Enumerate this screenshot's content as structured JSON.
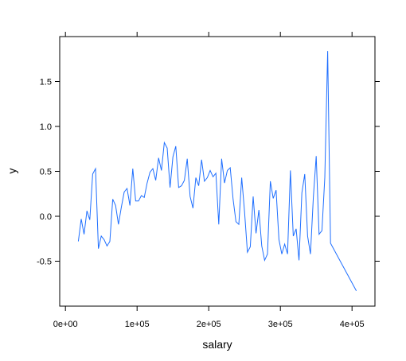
{
  "chart_data": {
    "type": "line",
    "xlabel": "salary",
    "ylabel": "y",
    "xlim": [
      -8000,
      432000
    ],
    "ylim": [
      -1.0,
      2.0
    ],
    "grid": false,
    "x_ticks": [
      {
        "value": 0,
        "label": "0e+00"
      },
      {
        "value": 100000,
        "label": "1e+05"
      },
      {
        "value": 200000,
        "label": "2e+05"
      },
      {
        "value": 300000,
        "label": "3e+05"
      },
      {
        "value": 400000,
        "label": "4e+05"
      }
    ],
    "y_ticks": [
      {
        "value": -0.5,
        "label": "-0.5"
      },
      {
        "value": 0.0,
        "label": "0.0"
      },
      {
        "value": 0.5,
        "label": "0.5"
      },
      {
        "value": 1.0,
        "label": "1.0"
      },
      {
        "value": 1.5,
        "label": "1.5"
      }
    ],
    "series": [
      {
        "color": "#1f6fff",
        "x": [
          18000,
          22000,
          26000,
          30000,
          34000,
          38000,
          42000,
          46000,
          50000,
          54000,
          58000,
          62000,
          66000,
          70000,
          74000,
          78000,
          82000,
          86000,
          90000,
          94000,
          98000,
          102000,
          106000,
          110000,
          114000,
          118000,
          122000,
          126000,
          130000,
          134000,
          138000,
          142000,
          146000,
          150000,
          154000,
          158000,
          162000,
          166000,
          170000,
          174000,
          178000,
          182000,
          186000,
          190000,
          194000,
          198000,
          202000,
          206000,
          210000,
          214000,
          218000,
          222000,
          226000,
          230000,
          234000,
          238000,
          242000,
          246000,
          250000,
          254000,
          258000,
          262000,
          266000,
          270000,
          274000,
          278000,
          282000,
          286000,
          290000,
          294000,
          298000,
          302000,
          306000,
          310000,
          314000,
          318000,
          322000,
          326000,
          330000,
          334000,
          338000,
          342000,
          346000,
          350000,
          354000,
          358000,
          362000,
          366000,
          370000,
          406000
        ],
        "y": [
          -0.28,
          -0.03,
          -0.2,
          0.06,
          -0.04,
          0.47,
          0.53,
          -0.36,
          -0.22,
          -0.26,
          -0.33,
          -0.28,
          0.19,
          0.12,
          -0.09,
          0.1,
          0.27,
          0.31,
          0.12,
          0.53,
          0.17,
          0.17,
          0.23,
          0.21,
          0.37,
          0.49,
          0.53,
          0.4,
          0.65,
          0.51,
          0.82,
          0.76,
          0.32,
          0.66,
          0.78,
          0.32,
          0.34,
          0.4,
          0.64,
          0.22,
          0.09,
          0.43,
          0.34,
          0.63,
          0.39,
          0.43,
          0.51,
          0.44,
          0.48,
          -0.09,
          0.64,
          0.37,
          0.51,
          0.54,
          0.19,
          -0.06,
          -0.09,
          0.43,
          0.05,
          -0.4,
          -0.34,
          0.22,
          -0.19,
          0.07,
          -0.33,
          -0.49,
          -0.42,
          0.39,
          0.2,
          0.29,
          -0.26,
          -0.42,
          -0.31,
          -0.42,
          0.51,
          -0.22,
          -0.14,
          -0.49,
          0.26,
          0.47,
          -0.22,
          -0.42,
          0.21,
          0.67,
          -0.2,
          -0.16,
          0.43,
          1.84,
          -0.3,
          -0.83
        ]
      }
    ]
  }
}
